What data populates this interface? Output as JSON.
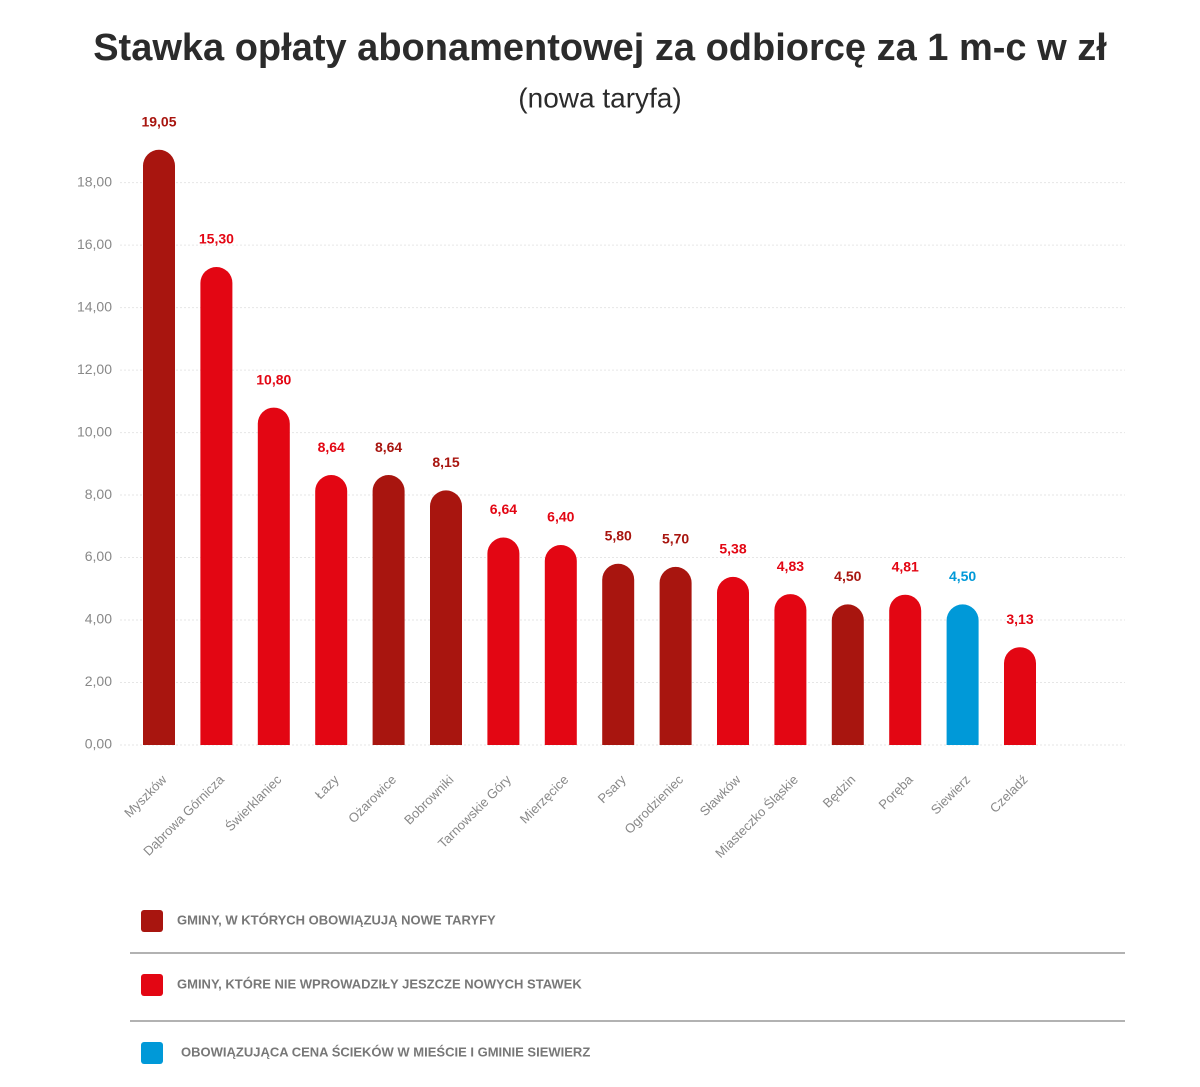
{
  "chart_data": {
    "type": "bar",
    "title": "Stawka opłaty abonamentowej za odbiorcę za 1 m-c w zł",
    "subtitle": "(nowa taryfa)",
    "categories": [
      "Myszków",
      "Dąbrowa Górnicza",
      "Świerklaniec",
      "Łazy",
      "Ożarowice",
      "Bobrowniki",
      "Tarnowskie Góry",
      "Mierzęcice",
      "Psary",
      "Ogrodzieniec",
      "Sławków",
      "Miasteczko Śląskie",
      "Będzin",
      "Poręba",
      "Siewierz",
      "Czeladź"
    ],
    "values": [
      19.05,
      15.3,
      10.8,
      8.64,
      8.64,
      8.15,
      6.64,
      6.4,
      5.8,
      5.7,
      5.38,
      4.83,
      4.5,
      4.81,
      4.5,
      3.13
    ],
    "value_labels": [
      "19,05",
      "15,30",
      "10,80",
      "8,64",
      "8,64",
      "8,15",
      "6,64",
      "6,40",
      "5,80",
      "5,70",
      "5,38",
      "4,83",
      "4,50",
      "4,81",
      "4,50",
      "3,13"
    ],
    "colors": [
      "#a8150f",
      "#e30613",
      "#e30613",
      "#e30613",
      "#a8150f",
      "#a8150f",
      "#e30613",
      "#e30613",
      "#a8150f",
      "#a8150f",
      "#e30613",
      "#e30613",
      "#a8150f",
      "#e30613",
      "#0099d8",
      "#e30613"
    ],
    "ylim": [
      0,
      19.3
    ],
    "yticks": [
      {
        "value": 0,
        "label": "0,00"
      },
      {
        "value": 2,
        "label": "2,00"
      },
      {
        "value": 4,
        "label": "4,00"
      },
      {
        "value": 6,
        "label": "6,00"
      },
      {
        "value": 8,
        "label": "8,00"
      },
      {
        "value": 10,
        "label": "10,00"
      },
      {
        "value": 12,
        "label": "12,00"
      },
      {
        "value": 14,
        "label": "14,00"
      },
      {
        "value": 16,
        "label": "16,00"
      },
      {
        "value": 18,
        "label": "18,00"
      }
    ],
    "grid": true,
    "legend": [
      {
        "name": "GMINY, W KTÓRYCH OBOWIĄZUJĄ NOWE TARYFY",
        "color": "#a8150f"
      },
      {
        "name": "GMINY, KTÓRE NIE WPROWADZIŁY JESZCZE NOWYCH STAWEK",
        "color": "#e30613"
      },
      {
        "name": "OBOWIĄZUJĄCA CENA ŚCIEKÓW W MIEŚCIE I GMINIE SIEWIERZ",
        "color": "#0099d8"
      }
    ]
  }
}
